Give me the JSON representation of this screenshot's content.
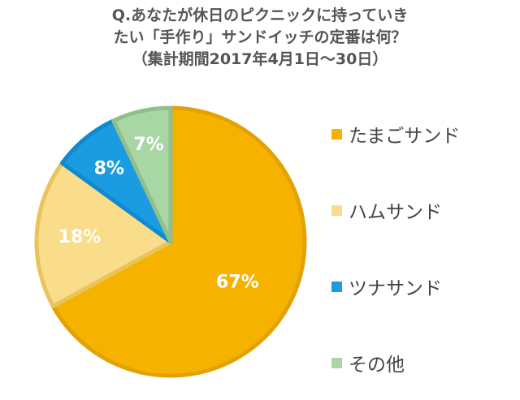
{
  "title": {
    "line1": "Q.あなたが休日のピクニックに持っていき",
    "line2": "たい「手作り」サンドイッチの定番は何？",
    "line3": "（集計期間2017年4月1日～30日）"
  },
  "chart_data": {
    "type": "pie",
    "categories": [
      "たまごサンド",
      "ハムサンド",
      "ツナサンド",
      "その他"
    ],
    "values": [
      67,
      18,
      8,
      7
    ],
    "labels": [
      "67%",
      "18%",
      "8%",
      "7%"
    ],
    "colors": [
      "#F5B300",
      "#FADD8A",
      "#1B9BE0",
      "#A9D6A5"
    ],
    "border_colors": [
      "#E4A200",
      "#EAC35A",
      "#108ACF",
      "#8FC08C"
    ],
    "start": "top, clockwise",
    "legend": "right"
  }
}
